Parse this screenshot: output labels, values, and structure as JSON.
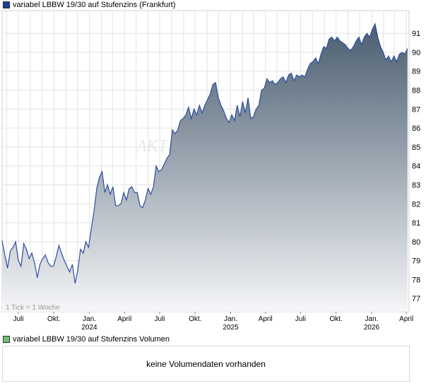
{
  "legend": {
    "price_label": "variabel LBBW 19/30 auf Stufenzins (Frankfurt)",
    "price_color": "#1f3d9a",
    "volume_label": "variabel LBBW 19/30 auf Stufenzins Volumen",
    "volume_color": "#6cc26c"
  },
  "tick_note": "1 Tick = 1 Woche",
  "watermark": "AKTIE",
  "volume_empty_text": "keine Volumendaten vorhanden",
  "chart_data": {
    "type": "area",
    "line_color": "#2b4e9e",
    "fill_top_color": "#4a5d70",
    "fill_bottom_color": "#f5f6f8",
    "grid": true,
    "ylim": [
      76.3,
      92.2
    ],
    "y_ticks": [
      77,
      78,
      79,
      80,
      81,
      82,
      83,
      84,
      85,
      86,
      87,
      88,
      89,
      90,
      91
    ],
    "x_tick_labels": [
      {
        "date": "2023-07-01",
        "label": "Juli",
        "year": ""
      },
      {
        "date": "2023-10-01",
        "label": "Okt.",
        "year": ""
      },
      {
        "date": "2024-01-01",
        "label": "Jan.",
        "year": "2024"
      },
      {
        "date": "2024-04-01",
        "label": "April",
        "year": ""
      },
      {
        "date": "2024-07-01",
        "label": "Juli",
        "year": ""
      },
      {
        "date": "2024-10-01",
        "label": "Okt.",
        "year": ""
      },
      {
        "date": "2025-01-01",
        "label": "Jan.",
        "year": "2025"
      },
      {
        "date": "2025-04-01",
        "label": "April",
        "year": ""
      },
      {
        "date": "2025-07-01",
        "label": "Juli",
        "year": ""
      },
      {
        "date": "2025-10-01",
        "label": "Okt.",
        "year": ""
      },
      {
        "date": "2026-01-01",
        "label": "Jan.",
        "year": "2026"
      },
      {
        "date": "2026-04-01",
        "label": "April",
        "year": ""
      }
    ],
    "x_range": [
      "2023-05-20",
      "2026-04-08"
    ],
    "series": [
      {
        "name": "variabel LBBW 19/30 auf Stufenzins (Frankfurt)",
        "points": [
          [
            "2023-05-20",
            80.05
          ],
          [
            "2023-05-27",
            79.3
          ],
          [
            "2023-06-03",
            78.6
          ],
          [
            "2023-06-10",
            79.5
          ],
          [
            "2023-06-17",
            79.7
          ],
          [
            "2023-06-24",
            80.0
          ],
          [
            "2023-07-01",
            79.0
          ],
          [
            "2023-07-08",
            78.7
          ],
          [
            "2023-07-15",
            79.9
          ],
          [
            "2023-07-22",
            79.6
          ],
          [
            "2023-07-29",
            79.1
          ],
          [
            "2023-08-05",
            79.4
          ],
          [
            "2023-08-12",
            78.9
          ],
          [
            "2023-08-19",
            78.1
          ],
          [
            "2023-08-26",
            78.8
          ],
          [
            "2023-09-02",
            79.1
          ],
          [
            "2023-09-09",
            79.3
          ],
          [
            "2023-09-16",
            78.9
          ],
          [
            "2023-09-23",
            78.7
          ],
          [
            "2023-09-30",
            78.7
          ],
          [
            "2023-10-07",
            79.2
          ],
          [
            "2023-10-14",
            79.8
          ],
          [
            "2023-10-21",
            79.4
          ],
          [
            "2023-10-28",
            79.0
          ],
          [
            "2023-11-04",
            78.7
          ],
          [
            "2023-11-11",
            78.4
          ],
          [
            "2023-11-18",
            78.8
          ],
          [
            "2023-11-25",
            77.8
          ],
          [
            "2023-12-02",
            78.5
          ],
          [
            "2023-12-09",
            79.6
          ],
          [
            "2023-12-16",
            79.4
          ],
          [
            "2023-12-23",
            80.0
          ],
          [
            "2023-12-30",
            79.7
          ],
          [
            "2024-01-06",
            80.7
          ],
          [
            "2024-01-13",
            81.6
          ],
          [
            "2024-01-20",
            82.8
          ],
          [
            "2024-01-27",
            83.4
          ],
          [
            "2024-02-03",
            83.7
          ],
          [
            "2024-02-10",
            82.6
          ],
          [
            "2024-02-17",
            83.0
          ],
          [
            "2024-02-24",
            82.5
          ],
          [
            "2024-03-02",
            82.9
          ],
          [
            "2024-03-09",
            81.9
          ],
          [
            "2024-03-16",
            81.9
          ],
          [
            "2024-03-23",
            82.0
          ],
          [
            "2024-03-30",
            82.6
          ],
          [
            "2024-04-06",
            82.2
          ],
          [
            "2024-04-13",
            82.8
          ],
          [
            "2024-04-20",
            82.9
          ],
          [
            "2024-04-27",
            82.6
          ],
          [
            "2024-05-04",
            82.6
          ],
          [
            "2024-05-11",
            81.9
          ],
          [
            "2024-05-18",
            81.8
          ],
          [
            "2024-05-25",
            82.2
          ],
          [
            "2024-06-01",
            82.8
          ],
          [
            "2024-06-08",
            82.5
          ],
          [
            "2024-06-15",
            82.9
          ],
          [
            "2024-06-22",
            84.0
          ],
          [
            "2024-06-29",
            83.7
          ],
          [
            "2024-07-06",
            83.8
          ],
          [
            "2024-07-13",
            84.1
          ],
          [
            "2024-07-20",
            84.4
          ],
          [
            "2024-07-27",
            84.6
          ],
          [
            "2024-08-03",
            85.9
          ],
          [
            "2024-08-10",
            85.7
          ],
          [
            "2024-08-17",
            85.9
          ],
          [
            "2024-08-24",
            86.4
          ],
          [
            "2024-08-31",
            86.5
          ],
          [
            "2024-09-07",
            86.7
          ],
          [
            "2024-09-14",
            87.1
          ],
          [
            "2024-09-21",
            86.5
          ],
          [
            "2024-09-28",
            87.0
          ],
          [
            "2024-10-05",
            86.7
          ],
          [
            "2024-10-12",
            87.2
          ],
          [
            "2024-10-19",
            86.8
          ],
          [
            "2024-10-26",
            87.2
          ],
          [
            "2024-11-02",
            87.5
          ],
          [
            "2024-11-09",
            87.8
          ],
          [
            "2024-11-16",
            88.3
          ],
          [
            "2024-11-23",
            88.4
          ],
          [
            "2024-11-30",
            87.6
          ],
          [
            "2024-12-07",
            87.2
          ],
          [
            "2024-12-14",
            86.9
          ],
          [
            "2024-12-21",
            86.5
          ],
          [
            "2024-12-28",
            86.3
          ],
          [
            "2025-01-04",
            86.7
          ],
          [
            "2025-01-11",
            86.4
          ],
          [
            "2025-01-18",
            87.2
          ],
          [
            "2025-01-25",
            86.6
          ],
          [
            "2025-02-01",
            87.4
          ],
          [
            "2025-02-08",
            86.8
          ],
          [
            "2025-02-15",
            87.6
          ],
          [
            "2025-02-22",
            86.5
          ],
          [
            "2025-03-01",
            86.6
          ],
          [
            "2025-03-08",
            87.0
          ],
          [
            "2025-03-15",
            87.2
          ],
          [
            "2025-03-22",
            88.0
          ],
          [
            "2025-03-29",
            88.1
          ],
          [
            "2025-04-05",
            88.6
          ],
          [
            "2025-04-12",
            88.4
          ],
          [
            "2025-04-19",
            88.5
          ],
          [
            "2025-04-26",
            88.3
          ],
          [
            "2025-05-03",
            88.4
          ],
          [
            "2025-05-10",
            88.6
          ],
          [
            "2025-05-17",
            88.7
          ],
          [
            "2025-05-24",
            88.4
          ],
          [
            "2025-05-31",
            88.8
          ],
          [
            "2025-06-07",
            88.9
          ],
          [
            "2025-06-14",
            88.5
          ],
          [
            "2025-06-21",
            88.8
          ],
          [
            "2025-06-28",
            88.7
          ],
          [
            "2025-07-05",
            88.8
          ],
          [
            "2025-07-12",
            88.7
          ],
          [
            "2025-07-19",
            89.1
          ],
          [
            "2025-07-26",
            89.4
          ],
          [
            "2025-08-02",
            89.5
          ],
          [
            "2025-08-09",
            89.7
          ],
          [
            "2025-08-16",
            89.4
          ],
          [
            "2025-08-23",
            89.9
          ],
          [
            "2025-08-30",
            90.3
          ],
          [
            "2025-09-06",
            90.2
          ],
          [
            "2025-09-13",
            90.7
          ],
          [
            "2025-09-20",
            90.8
          ],
          [
            "2025-09-27",
            90.6
          ],
          [
            "2025-10-04",
            90.8
          ],
          [
            "2025-10-11",
            90.6
          ],
          [
            "2025-10-18",
            90.5
          ],
          [
            "2025-10-25",
            90.4
          ],
          [
            "2025-11-01",
            90.2
          ],
          [
            "2025-11-08",
            90.1
          ],
          [
            "2025-11-15",
            90.3
          ],
          [
            "2025-11-22",
            90.6
          ],
          [
            "2025-11-29",
            90.8
          ],
          [
            "2025-12-06",
            90.4
          ],
          [
            "2025-12-13",
            90.8
          ],
          [
            "2025-12-20",
            91.0
          ],
          [
            "2025-12-27",
            90.8
          ],
          [
            "2026-01-03",
            91.2
          ],
          [
            "2026-01-10",
            91.5
          ],
          [
            "2026-01-17",
            90.8
          ],
          [
            "2026-01-24",
            90.3
          ],
          [
            "2026-01-31",
            90.0
          ],
          [
            "2026-02-07",
            89.6
          ],
          [
            "2026-02-14",
            89.8
          ],
          [
            "2026-02-21",
            89.5
          ],
          [
            "2026-02-28",
            89.8
          ],
          [
            "2026-03-07",
            89.5
          ],
          [
            "2026-03-14",
            89.9
          ],
          [
            "2026-03-21",
            90.0
          ],
          [
            "2026-03-28",
            89.9
          ],
          [
            "2026-04-04",
            90.2
          ]
        ]
      }
    ]
  }
}
